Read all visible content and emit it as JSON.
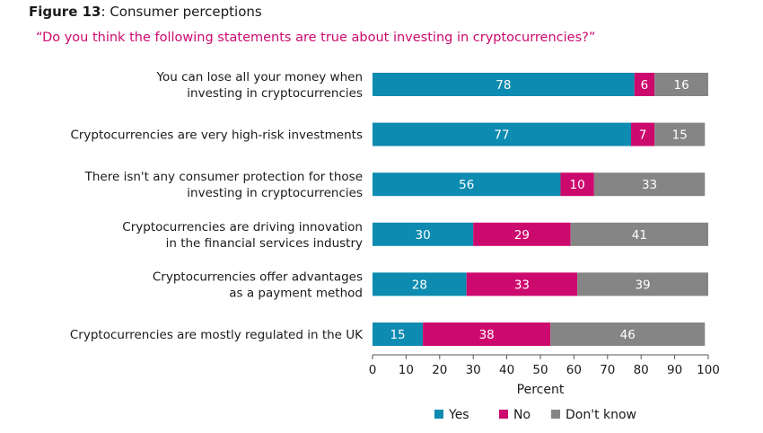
{
  "figure": {
    "label": "Figure 13",
    "separator": ": ",
    "title": "Consumer perceptions",
    "subtitle": "“Do you think the following statements are true about investing in cryptocurrencies?”",
    "subtitle_color": "#cc0a6e"
  },
  "chart_data": {
    "type": "bar",
    "orientation": "horizontal",
    "stacked": true,
    "categories": [
      [
        "You can lose all your money when",
        "investing in cryptocurrencies"
      ],
      [
        "Cryptocurrencies are very high-risk investments"
      ],
      [
        "There isn't any consumer protection for those",
        "investing in cryptocurrencies"
      ],
      [
        "Cryptocurrencies are driving innovation",
        "in the financial services industry"
      ],
      [
        "Cryptocurrencies offer advantages",
        "as a payment method"
      ],
      [
        "Cryptocurrencies are mostly regulated in the UK"
      ]
    ],
    "series": [
      {
        "name": "Yes",
        "color": "#0e8bb0",
        "values": [
          78,
          77,
          56,
          30,
          28,
          15
        ]
      },
      {
        "name": "No",
        "color": "#cc0a6e",
        "values": [
          6,
          7,
          10,
          29,
          33,
          38
        ]
      },
      {
        "name": "Don't know",
        "color": "#858585",
        "values": [
          16,
          15,
          33,
          41,
          39,
          46
        ]
      }
    ],
    "xlabel": "Percent",
    "xlim": [
      0,
      100
    ],
    "xticks": [
      0,
      10,
      20,
      30,
      40,
      50,
      60,
      70,
      80,
      90,
      100
    ],
    "legend_position": "bottom",
    "grid": false
  }
}
